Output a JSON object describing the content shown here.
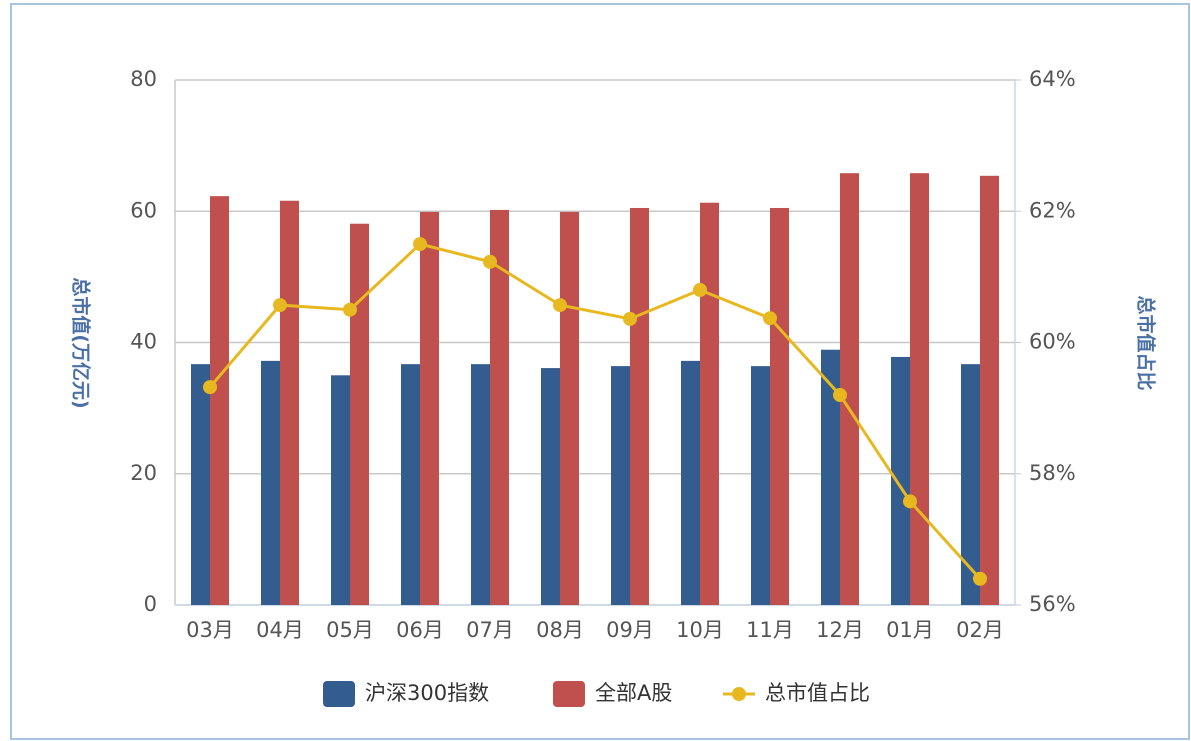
{
  "chart_data": {
    "type": "bar",
    "categories": [
      "03月",
      "04月",
      "05月",
      "06月",
      "07月",
      "08月",
      "09月",
      "10月",
      "11月",
      "12月",
      "01月",
      "02月"
    ],
    "series": [
      {
        "name": "沪深300指数",
        "color": "#335c8f",
        "values": [
          36.7,
          37.2,
          35.0,
          36.7,
          36.7,
          36.1,
          36.4,
          37.2,
          36.4,
          38.9,
          37.8,
          36.7
        ]
      },
      {
        "name": "全部A股",
        "color": "#c0504d",
        "values": [
          62.3,
          61.6,
          58.1,
          59.9,
          60.2,
          59.9,
          60.5,
          61.3,
          60.5,
          65.8,
          65.8,
          65.4
        ]
      },
      {
        "name": "总市值占比",
        "type": "line",
        "axis": "y2",
        "color": "#e8b820",
        "values": [
          59.32,
          60.57,
          60.5,
          61.5,
          61.23,
          60.57,
          60.36,
          60.8,
          60.37,
          59.2,
          57.58,
          56.4
        ]
      }
    ],
    "ylabel": "总市值(万亿元)",
    "y2label": "总市值占比",
    "ylim": [
      0,
      80
    ],
    "yticks": [
      0,
      20,
      40,
      60,
      80
    ],
    "y2lim": [
      56,
      64
    ],
    "y2ticks": [
      {
        "value": 56,
        "label": "56%"
      },
      {
        "value": 58,
        "label": "58%"
      },
      {
        "value": 60,
        "label": "60%"
      },
      {
        "value": 62,
        "label": "62%"
      },
      {
        "value": 64,
        "label": "64%"
      }
    ],
    "grid": true,
    "legend": "bottom"
  }
}
